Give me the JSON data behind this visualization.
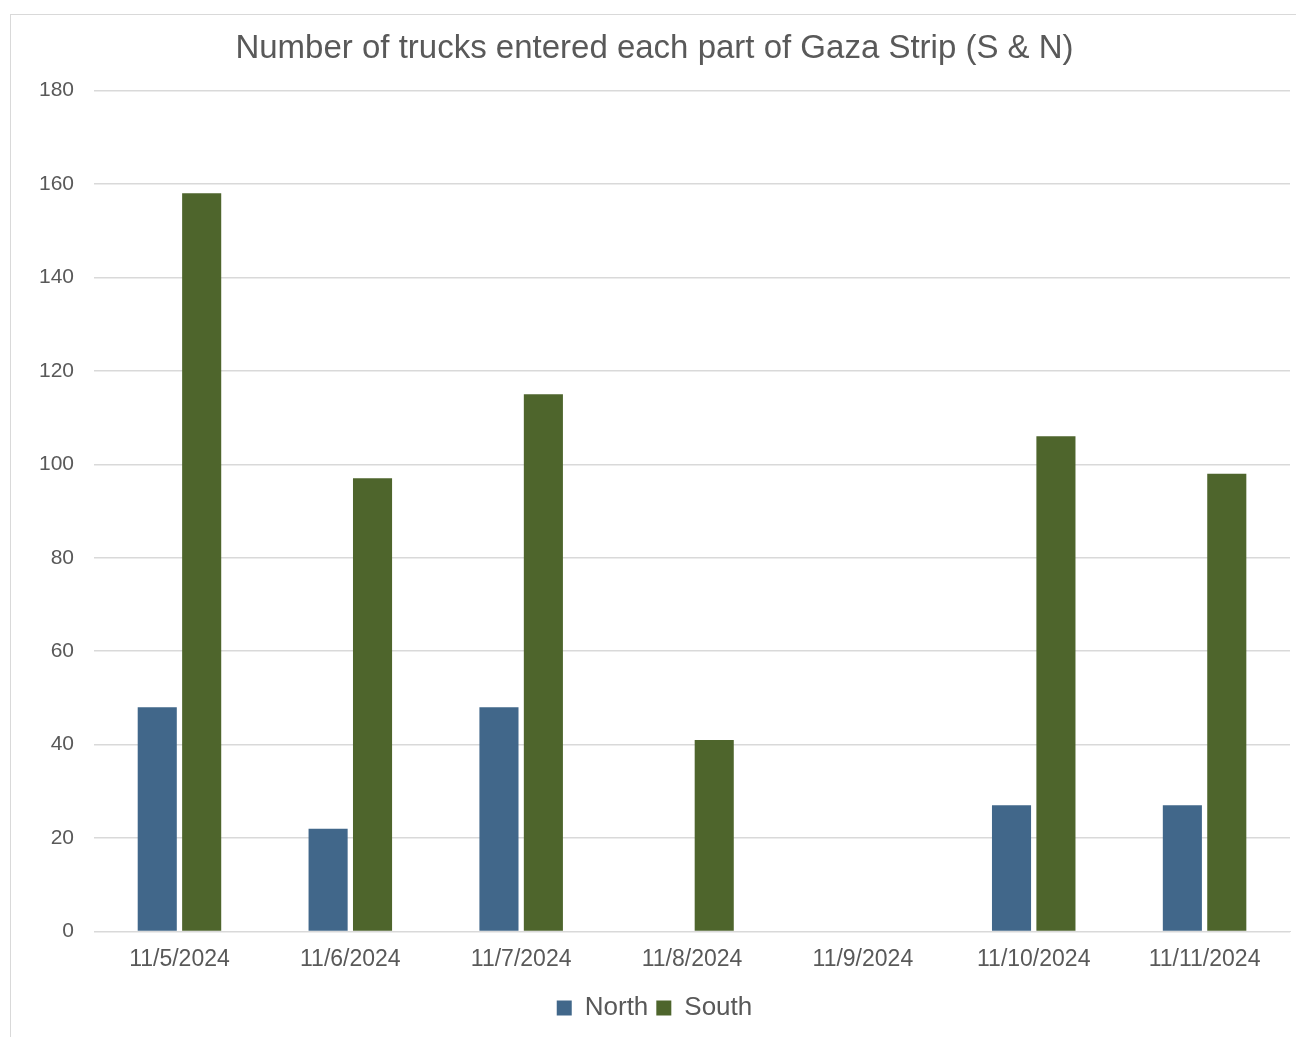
{
  "chart_data": {
    "type": "bar",
    "title": "Number of trucks entered each part of Gaza Strip (S & N)",
    "categories": [
      "11/5/2024",
      "11/6/2024",
      "11/7/2024",
      "11/8/2024",
      "11/9/2024",
      "11/10/2024",
      "11/11/2024"
    ],
    "series": [
      {
        "name": "North",
        "color": "#41678a",
        "values": [
          48,
          22,
          48,
          0,
          0,
          27,
          27
        ]
      },
      {
        "name": "South",
        "color": "#4e652c",
        "values": [
          158,
          97,
          115,
          41,
          0,
          106,
          98
        ]
      }
    ],
    "ylim": [
      0,
      180
    ],
    "yticks": [
      0,
      20,
      40,
      60,
      80,
      100,
      120,
      140,
      160,
      180
    ],
    "grid": "y",
    "legend": "bottom"
  }
}
